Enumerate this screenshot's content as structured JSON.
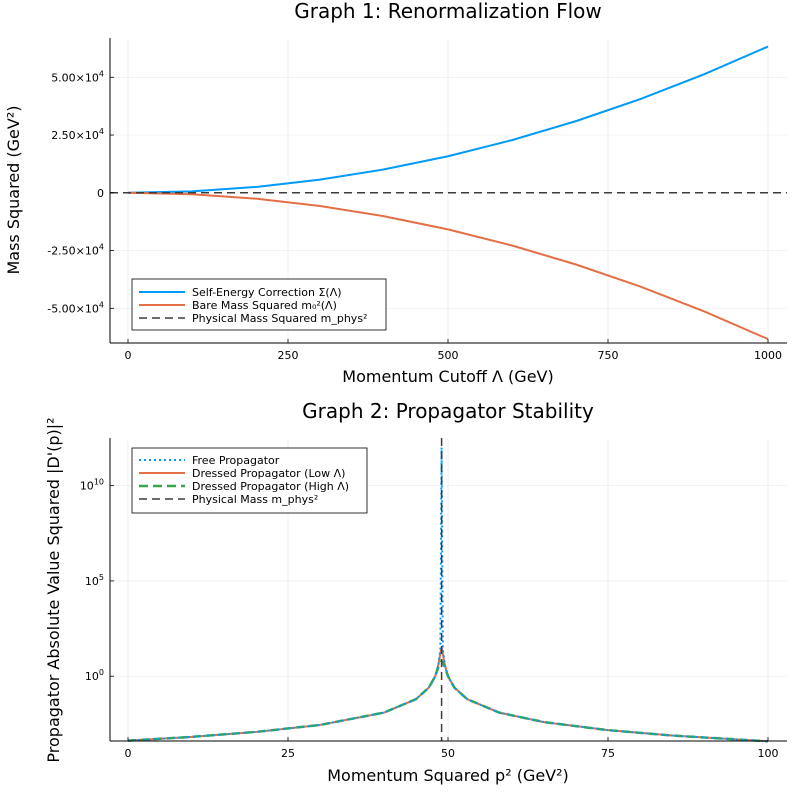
{
  "chart_data": [
    {
      "type": "line",
      "title": "Graph 1: Renormalization Flow",
      "xlabel": "Momentum Cutoff Λ (GeV)",
      "ylabel": "Mass Squared (GeV²)",
      "xlim": [
        0,
        1000
      ],
      "ylim": [
        -65000,
        67000
      ],
      "xticks": [
        {
          "value": 0,
          "label": "0"
        },
        {
          "value": 250,
          "label": "250"
        },
        {
          "value": 500,
          "label": "500"
        },
        {
          "value": 750,
          "label": "750"
        },
        {
          "value": 1000,
          "label": "1000"
        }
      ],
      "yticks": [
        {
          "value": -50000,
          "mant": "-5.00×10",
          "exp": "4"
        },
        {
          "value": -25000,
          "mant": "-2.50×10",
          "exp": "4"
        },
        {
          "value": 0,
          "mant": "0",
          "exp": ""
        },
        {
          "value": 25000,
          "mant": "2.50×10",
          "exp": "4"
        },
        {
          "value": 50000,
          "mant": "5.00×10",
          "exp": "4"
        }
      ],
      "grid": true,
      "legend_position": "bottom-left",
      "series": [
        {
          "name": "Self-Energy Correction Σ(Λ)",
          "color": "#009af9",
          "dash": "solid",
          "x": [
            0,
            100,
            200,
            300,
            400,
            500,
            600,
            700,
            800,
            900,
            1000
          ],
          "y": [
            0,
            630,
            2530,
            5700,
            10130,
            15830,
            22800,
            31030,
            40530,
            51300,
            63300
          ]
        },
        {
          "name": "Bare Mass Squared m₀²(Λ)",
          "color": "#e26f46",
          "dash": "solid",
          "x": [
            0,
            100,
            200,
            300,
            400,
            500,
            600,
            700,
            800,
            900,
            1000
          ],
          "y": [
            0,
            -630,
            -2530,
            -5700,
            -10130,
            -15830,
            -22800,
            -31030,
            -40530,
            -51300,
            -63300
          ]
        },
        {
          "name": "Physical Mass Squared m_phys²",
          "color": "#3c3c3c",
          "dash": "dashed",
          "type": "hline",
          "y": 0
        }
      ]
    },
    {
      "type": "line",
      "title": "Graph 2: Propagator Stability",
      "xlabel": "Momentum Squared p² (GeV²)",
      "ylabel": "Propagator Absolute Value Squared |D'(p)|²",
      "xlim": [
        0,
        100
      ],
      "ylog": true,
      "ylim_log10": [
        -3.4,
        12.5
      ],
      "xticks": [
        {
          "value": 0,
          "label": "0"
        },
        {
          "value": 25,
          "label": "25"
        },
        {
          "value": 50,
          "label": "50"
        },
        {
          "value": 75,
          "label": "75"
        },
        {
          "value": 100,
          "label": "100"
        }
      ],
      "yticks": [
        {
          "value": 0,
          "mant": "10",
          "exp": "0"
        },
        {
          "value": 5,
          "mant": "10",
          "exp": "5"
        },
        {
          "value": 10,
          "mant": "10",
          "exp": "10"
        }
      ],
      "grid": true,
      "legend_position": "top-left",
      "physical_mass_squared": 49,
      "series": [
        {
          "name": "Free Propagator",
          "color": "#009af9",
          "dash": "dotted",
          "peak_log10": 12.0,
          "x": [
            0,
            10,
            20,
            30,
            40,
            45,
            47,
            48,
            48.5,
            48.8,
            49,
            49.2,
            49.5,
            50,
            51,
            53,
            58,
            65,
            75,
            85,
            100
          ],
          "y": [
            0.000416,
            0.000657,
            0.00119,
            0.00277,
            0.0123,
            0.0625,
            0.25,
            1,
            4,
            25,
            1000000000000.0,
            25,
            4,
            1,
            0.25,
            0.0625,
            0.0123,
            0.00391,
            0.00148,
            0.000771,
            0.000384
          ]
        },
        {
          "name": "Dressed Propagator (Low Λ)",
          "color": "#e26f46",
          "dash": "solid",
          "peak_log10": 1.5,
          "x": [
            0,
            10,
            20,
            30,
            40,
            45,
            47,
            48,
            48.5,
            48.8,
            49,
            49.2,
            49.5,
            50,
            51,
            53,
            58,
            65,
            75,
            85,
            100
          ],
          "y": [
            0.000416,
            0.000657,
            0.00119,
            0.00277,
            0.0123,
            0.0625,
            0.25,
            1,
            4,
            15,
            31.6,
            15,
            4,
            1,
            0.25,
            0.0625,
            0.0123,
            0.00391,
            0.00148,
            0.000771,
            0.000384
          ]
        },
        {
          "name": "Dressed Propagator (High Λ)",
          "color": "#3da44d",
          "dash": "dashed",
          "peak_log10": 0.8,
          "x": [
            0,
            10,
            20,
            30,
            40,
            45,
            47,
            48,
            48.5,
            48.8,
            49,
            49.2,
            49.5,
            50,
            51,
            53,
            58,
            65,
            75,
            85,
            100
          ],
          "y": [
            0.000416,
            0.000657,
            0.00119,
            0.00277,
            0.0123,
            0.0625,
            0.25,
            1,
            3,
            5,
            6.3,
            5,
            3,
            1,
            0.25,
            0.0625,
            0.0123,
            0.00391,
            0.00148,
            0.000771,
            0.000384
          ]
        },
        {
          "name": "Physical Mass m_phys²",
          "color": "#3c3c3c",
          "dash": "dashed",
          "type": "vline",
          "x": 49
        }
      ]
    }
  ]
}
